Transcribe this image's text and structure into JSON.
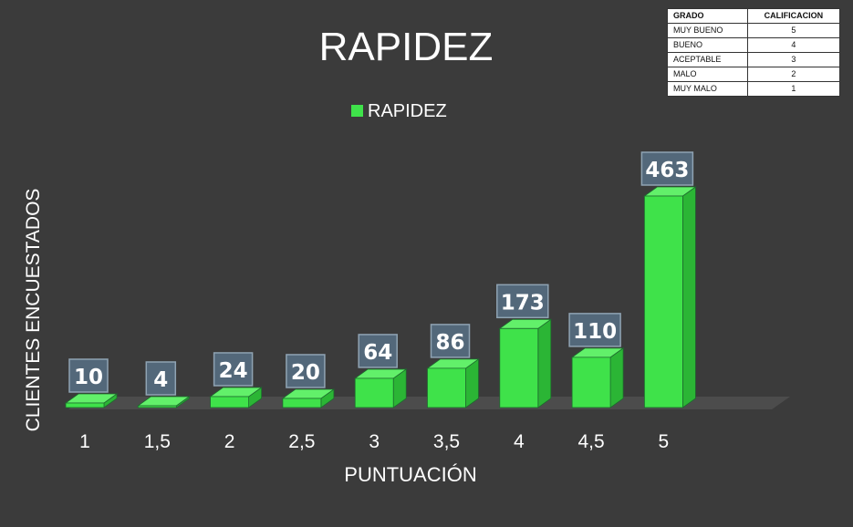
{
  "colors": {
    "background": "#3b3b3b",
    "bar_front": "#3fe24a",
    "bar_side": "#2bb535",
    "bar_top": "#62f06a",
    "label_box": "#53687a",
    "text": "#ffffff",
    "floor": "#4c4c4c"
  },
  "chart_data": {
    "type": "bar",
    "title": "RAPIDEZ",
    "xlabel": "PUNTUACIÓN",
    "ylabel": "CLIENTES ENCUESTADOS",
    "categories": [
      "1",
      "1,5",
      "2",
      "2,5",
      "3",
      "3,5",
      "4",
      "4,5",
      "5"
    ],
    "series": [
      {
        "name": "RAPIDEZ",
        "values": [
          10,
          4,
          24,
          20,
          64,
          86,
          173,
          110,
          463
        ]
      }
    ],
    "ylim": [
      0,
      463
    ],
    "grid": false,
    "legend": "top-center",
    "style": "3d"
  },
  "grade_table": {
    "headers": [
      "GRADO",
      "CALIFICACION"
    ],
    "rows": [
      {
        "grade": "MUY BUENO",
        "score": "5"
      },
      {
        "grade": "BUENO",
        "score": "4"
      },
      {
        "grade": "ACEPTABLE",
        "score": "3"
      },
      {
        "grade": "MALO",
        "score": "2"
      },
      {
        "grade": "MUY MALO",
        "score": "1"
      }
    ]
  }
}
